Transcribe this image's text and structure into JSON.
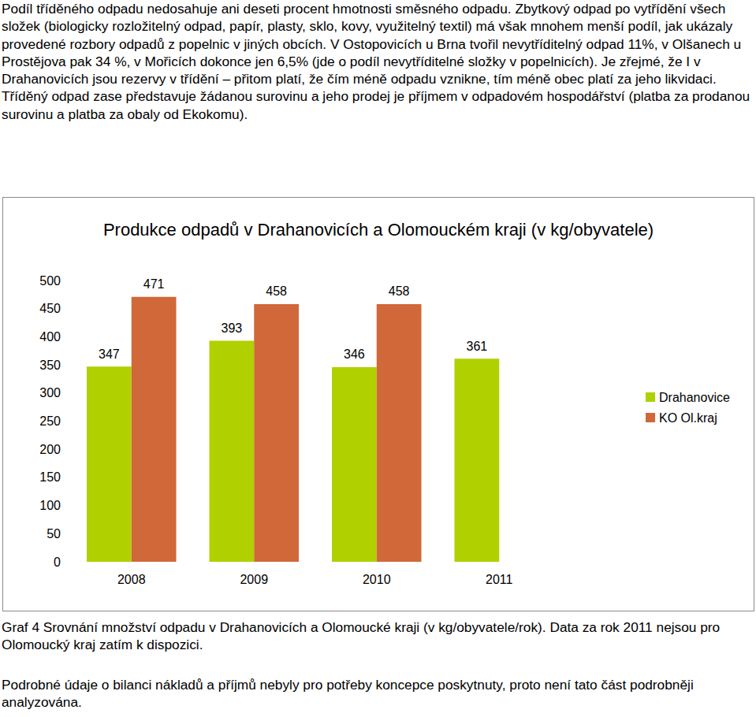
{
  "text_top": "Podíl tříděného odpadu nedosahuje ani deseti procent hmotnosti směsného odpadu. Zbytkový odpad po vytřídění všech složek (biologicky rozložitelný odpad, papír, plasty, sklo, kovy, využitelný textil) má však mnohem menší podíl, jak ukázaly provedené rozbory odpadů z popelnic v jiných obcích. V Ostopovicích u Brna tvořil nevytříditelný odpad 11%, v Olšanech u Prostějova pak 34 %, v Mořicích dokonce jen 6,5% (jde o podíl nevytříditelné složky v popelnicích). Je zřejmé, že I v Drahanovicích jsou rezervy v třídění – přitom platí, že čím méně odpadu vznikne, tím méně obec platí za jeho likvidaci. Tříděný odpad zase představuje žádanou surovinu a jeho prodej je příjmem v odpadovém hospodářství (platba za prodanou surovinu a platba za obaly od Ekokomu).",
  "chart_data": {
    "type": "bar",
    "title": "Produkce odpadů v Drahanovicích a Olomouckém kraji (v kg/obyvatele)",
    "categories": [
      "2008",
      "2009",
      "2010",
      "2011"
    ],
    "series": [
      {
        "name": "Drahanovice",
        "color": "#b0d000",
        "values": [
          347,
          393,
          346,
          361
        ]
      },
      {
        "name": "KO Ol.kraj",
        "color": "#d0683a",
        "values": [
          471,
          458,
          458,
          null
        ]
      }
    ],
    "ylim": [
      0,
      500
    ],
    "yticks": [
      0,
      50,
      100,
      150,
      200,
      250,
      300,
      350,
      400,
      450,
      500
    ],
    "grid": false,
    "legend": "right",
    "data_labels": true
  },
  "caption": "Graf 4 Srovnání množství odpadu v Drahanovicích a Olomoucké kraji (v kg/obyvatele/rok). Data za rok 2011 nejsou pro Olomoucký kraj zatím k dispozici.",
  "text_bottom": "Podrobné údaje o bilanci nákladů a příjmů nebyly pro potřeby koncepce poskytnuty, proto není tato část podrobněji analyzována."
}
